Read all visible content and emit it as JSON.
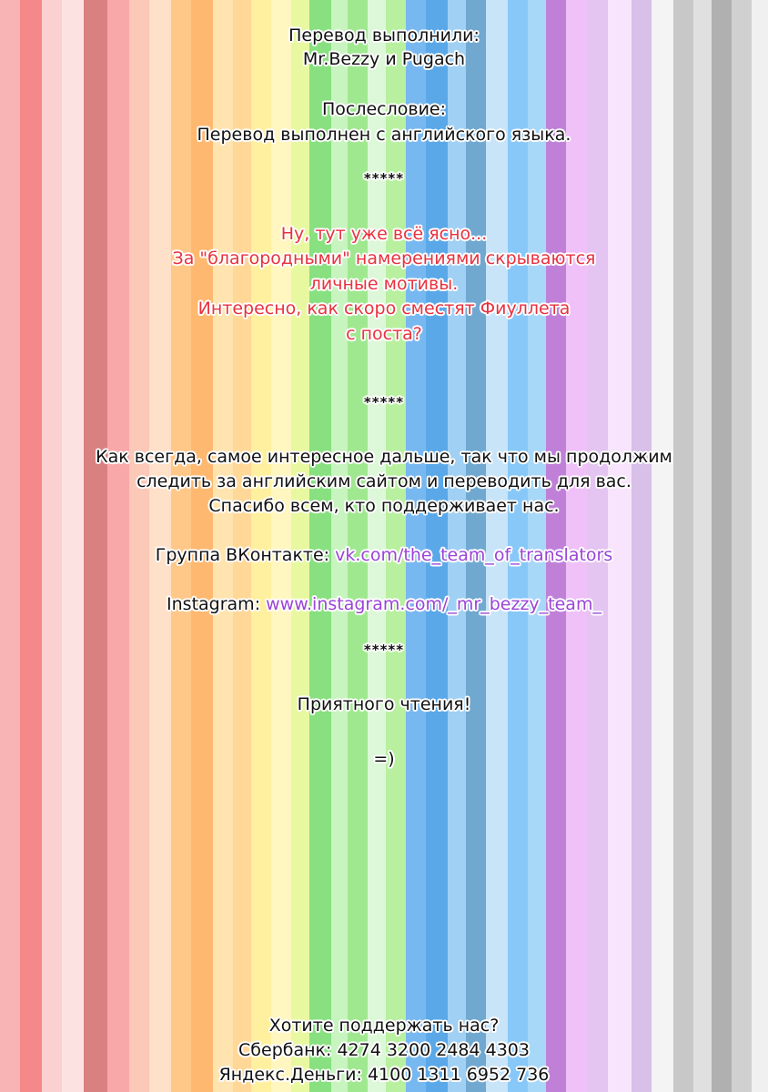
{
  "background": {
    "stripe_colors": [
      "#f8b4b4",
      "#f58888",
      "#fbd0d0",
      "#fde2e2",
      "#d98080",
      "#f8a8a8",
      "#fcc8b8",
      "#ffe0c8",
      "#ffc888",
      "#ffb870",
      "#ffe4b0",
      "#ffd898",
      "#fff0a0",
      "#fff6c0",
      "#e8f8a0",
      "#88e080",
      "#c8f4c0",
      "#a0e890",
      "#ddf8d8",
      "#b8f0a0",
      "#78b8f0",
      "#5aa8e8",
      "#a0d0f4",
      "#70a8d0",
      "#c8e4f8",
      "#88c8f8",
      "#a8d8f8",
      "#c080d8",
      "#f0c0f8",
      "#e4c4f0",
      "#f8e4fc",
      "#d8c0e8",
      "#f4f4f4",
      "#c8c8c8",
      "#e0e0e0",
      "#b0b0b0",
      "#d0d0d0",
      "#f0f0f0",
      "#c0c0c0",
      "#e8e8e8"
    ],
    "stripe_widths": [
      22,
      24,
      22,
      24,
      26,
      24,
      22,
      24,
      22,
      24,
      22,
      20,
      22,
      22,
      20,
      24,
      18,
      22,
      20,
      22,
      22,
      24,
      20,
      22,
      24,
      22,
      20,
      22,
      24,
      22,
      26,
      22,
      24,
      22,
      20,
      22,
      22,
      20,
      22,
      22
    ]
  },
  "credits": {
    "line1": "Перевод выполнили:",
    "line2": "Mr.Bezzy и Pugach"
  },
  "afterword": {
    "title": "Послесловие:",
    "text": "Перевод выполнен с английского языка."
  },
  "separator": "*****",
  "comment": [
    "Ну, тут уже всё ясно...",
    "За \"благородными\" намерениями скрываются",
    "личные мотивы.",
    "Интересно, как скоро сместят Фиуллета",
    "с поста?"
  ],
  "message": [
    "Как всегда, самое интересное дальше, так что мы продолжим",
    "следить за английским сайтом и переводить для вас.",
    "Спасибо всем, кто поддерживает нас."
  ],
  "vk": {
    "label": "Группа ВКонтакте: ",
    "url": "vk.com/the_team_of_translators"
  },
  "instagram": {
    "label": "Instagram: ",
    "url": "www.instagram.com/_mr_bezzy_team_"
  },
  "closing": {
    "text": "Приятного чтения!",
    "smiley": "=)"
  },
  "support": {
    "title": "Хотите поддержать нас?",
    "sberbank": "Сбербанк: 4274 3200 2484 4303",
    "yandex": "Яндекс.Деньги: 4100 1311 6952 736"
  }
}
